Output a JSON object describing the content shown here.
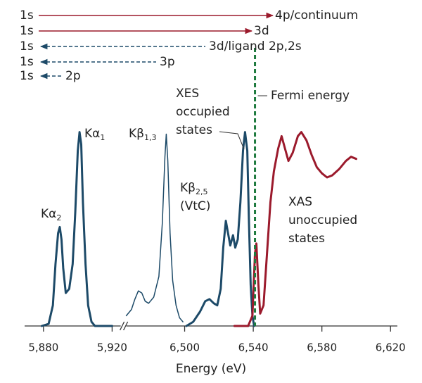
{
  "chart_data": {
    "type": "line",
    "x_label": "Energy (eV)",
    "ylim": [
      0,
      1
    ],
    "x_segments": [
      {
        "xlim": [
          5869,
          5925
        ],
        "xticks": [
          {
            "value": 5880,
            "label": "5,880"
          },
          {
            "value": 5920,
            "label": "5,920"
          }
        ]
      },
      {
        "xlim": [
          6466,
          6624
        ],
        "xticks": [
          {
            "value": 6500,
            "label": "6,500"
          },
          {
            "value": 6540,
            "label": "6,540"
          },
          {
            "value": 6580,
            "label": "6,580"
          },
          {
            "value": 6620,
            "label": "6,620"
          }
        ]
      }
    ],
    "series": [
      {
        "segment": 0,
        "color": "#1d4a68",
        "width": 3,
        "x": [
          5879,
          5883,
          5885.5,
          5887,
          5888.5,
          5889.5,
          5890.5,
          5891.5,
          5893,
          5895,
          5897,
          5898.5,
          5900,
          5901,
          5902,
          5903,
          5904.5,
          5906,
          5908,
          5910,
          5920
        ],
        "values": [
          0,
          0.01,
          0.1,
          0.3,
          0.45,
          0.48,
          0.42,
          0.28,
          0.16,
          0.18,
          0.3,
          0.55,
          0.85,
          0.94,
          0.88,
          0.6,
          0.3,
          0.1,
          0.02,
          0,
          0
        ]
      },
      {
        "segment": 1,
        "color": "#1d4a68",
        "width": 1.5,
        "x": [
          6466,
          6469,
          6471,
          6473,
          6475,
          6477,
          6479,
          6482,
          6485,
          6487,
          6488.5,
          6489.3,
          6490.2,
          6491.5,
          6493,
          6495,
          6497,
          6499
        ],
        "values": [
          0.05,
          0.08,
          0.13,
          0.17,
          0.16,
          0.12,
          0.11,
          0.14,
          0.24,
          0.5,
          0.82,
          0.93,
          0.8,
          0.45,
          0.22,
          0.1,
          0.04,
          0.02
        ]
      },
      {
        "segment": 1,
        "color": "#1d4a68",
        "width": 3,
        "x": [
          6501,
          6505,
          6509,
          6512,
          6514.5,
          6517,
          6519,
          6521,
          6522.5,
          6524,
          6525.3,
          6526.6,
          6528.2,
          6529.5,
          6531,
          6532.5,
          6534,
          6535.2,
          6536.5,
          6537.5,
          6538.5,
          6539.5,
          6540.5
        ],
        "values": [
          0,
          0.02,
          0.07,
          0.12,
          0.13,
          0.11,
          0.1,
          0.18,
          0.38,
          0.51,
          0.45,
          0.39,
          0.44,
          0.38,
          0.42,
          0.6,
          0.85,
          0.94,
          0.85,
          0.5,
          0.2,
          0.05,
          0
        ]
      },
      {
        "segment": 1,
        "color": "#9b1a2c",
        "width": 3,
        "x": [
          6529,
          6537,
          6539.5,
          6541,
          6541.8,
          6543,
          6544,
          6546,
          6548,
          6550,
          6552,
          6554.5,
          6556.5,
          6558.5,
          6560.5,
          6563,
          6566,
          6568,
          6571,
          6574,
          6577,
          6580,
          6583,
          6586,
          6590,
          6594,
          6597,
          6600
        ],
        "values": [
          0,
          0,
          0.05,
          0.35,
          0.4,
          0.2,
          0.06,
          0.1,
          0.35,
          0.6,
          0.75,
          0.86,
          0.92,
          0.86,
          0.8,
          0.84,
          0.92,
          0.94,
          0.9,
          0.83,
          0.77,
          0.74,
          0.72,
          0.73,
          0.76,
          0.8,
          0.82,
          0.81
        ]
      }
    ],
    "fermi_energy": 6541,
    "fermi_color": "#1e7a3e",
    "annotations": [
      {
        "lines": [
          "Kα"
        ],
        "sub": "2"
      },
      {
        "lines": [
          "Kα"
        ],
        "sub": "1"
      },
      {
        "lines": [
          "Kβ"
        ],
        "sub": "1,3"
      },
      {
        "lines": [
          "Kβ",
          "(VtC)"
        ],
        "sub": "2,5"
      },
      {
        "lines": [
          "XES",
          "occupied",
          "states"
        ]
      },
      {
        "lines": [
          "Fermi energy"
        ]
      },
      {
        "lines": [
          "XAS",
          "unoccupied",
          "states"
        ]
      }
    ],
    "transitions": [
      {
        "from": "1s",
        "to": "4p/continuum",
        "color": "#9b1a2c",
        "dashed": false
      },
      {
        "from": "1s",
        "to": "3d",
        "color": "#9b1a2c",
        "dashed": false
      },
      {
        "from": "1s",
        "to": "3d/ligand 2p,2s",
        "color": "#1d4a68",
        "dashed": true
      },
      {
        "from": "1s",
        "to": "3p",
        "color": "#1d4a68",
        "dashed": true
      },
      {
        "from": "1s",
        "to": "2p",
        "color": "#1d4a68",
        "dashed": true
      }
    ]
  }
}
